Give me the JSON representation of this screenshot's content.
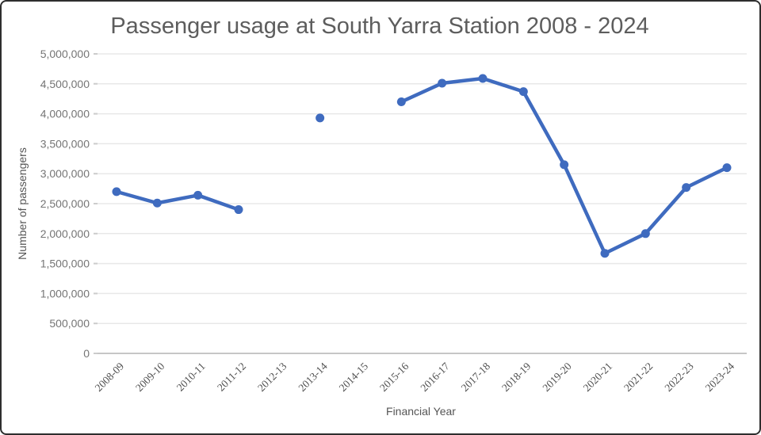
{
  "chart_data": {
    "type": "line",
    "title": "Passenger usage at South Yarra Station 2008 - 2024",
    "xlabel": "Financial Year",
    "ylabel": "Number of passengers",
    "categories": [
      "2008-09",
      "2009-10",
      "2010-11",
      "2011-12",
      "2012-13",
      "2013-14",
      "2014-15",
      "2015-16",
      "2016-17",
      "2017-18",
      "2018-19",
      "2019-20",
      "2020-21",
      "2021-22",
      "2022-23",
      "2023-24"
    ],
    "series": [
      {
        "name": "Number of passengers",
        "values": [
          2700000,
          2510000,
          2640000,
          2400000,
          null,
          3930000,
          null,
          4200000,
          4510000,
          4590000,
          4370000,
          3150000,
          1670000,
          2000000,
          2770000,
          3100000
        ]
      }
    ],
    "ylim": [
      0,
      5000000
    ],
    "ytick_step": 500000,
    "grid": true,
    "legend": "none",
    "marker": "circle",
    "notes": "no data plotted for 2012-13 and 2014-15; 2013-14 is an isolated point",
    "colors": {
      "line": "#3F6BBF",
      "grid": "#e8e8e8",
      "zero_axis": "#c6c6c6",
      "tick_mark": "#cccccc"
    }
  }
}
